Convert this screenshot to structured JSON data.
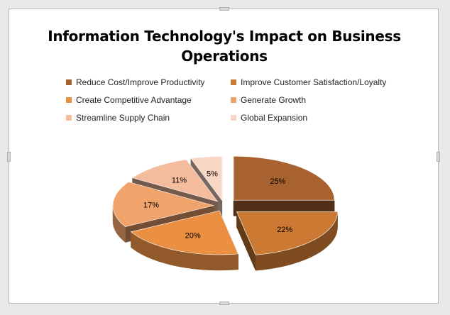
{
  "chart_data": {
    "type": "pie",
    "title": "Information Technology's Impact on Business Operations",
    "title_lines": [
      "Information Technology's Impact on Business",
      "Operations"
    ],
    "legend_placement": "top",
    "categories": [
      "Reduce Cost/Improve Productivity",
      "Improve Customer Satisfaction/Loyalty",
      "Create Competitive Advantage",
      "Generate Growth",
      "Streamline Supply Chain",
      "Global Expansion"
    ],
    "values": [
      25,
      22,
      20,
      17,
      11,
      5
    ],
    "value_labels": [
      "25%",
      "22%",
      "20%",
      "17%",
      "11%",
      "5%"
    ],
    "colors": [
      "#a8622f",
      "#cc7a33",
      "#eb8f43",
      "#f1a36c",
      "#f4bb9d",
      "#f8d6c4"
    ],
    "style": "3d-exploded"
  }
}
